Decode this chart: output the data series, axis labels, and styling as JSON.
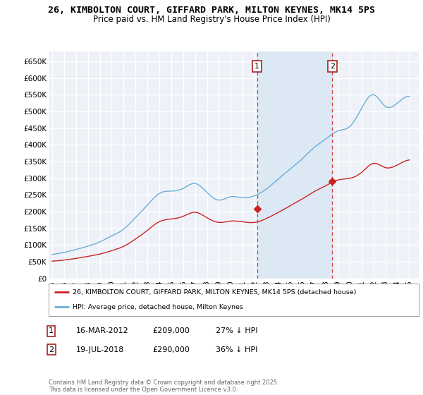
{
  "title": "26, KIMBOLTON COURT, GIFFARD PARK, MILTON KEYNES, MK14 5PS",
  "subtitle": "Price paid vs. HM Land Registry's House Price Index (HPI)",
  "title_fontsize": 9.5,
  "subtitle_fontsize": 8.5,
  "ylim": [
    0,
    680000
  ],
  "yticks": [
    0,
    50000,
    100000,
    150000,
    200000,
    250000,
    300000,
    350000,
    400000,
    450000,
    500000,
    550000,
    600000,
    650000
  ],
  "ytick_labels": [
    "£0",
    "£50K",
    "£100K",
    "£150K",
    "£200K",
    "£250K",
    "£300K",
    "£350K",
    "£400K",
    "£450K",
    "£500K",
    "£550K",
    "£600K",
    "£650K"
  ],
  "hpi_color": "#6dadd6",
  "price_color": "#cc2222",
  "annotation_box_color": "#aa2222",
  "vline_color": "#cc4444",
  "background_color": "#eef2f8",
  "shaded_color": "#dce8f4",
  "grid_color": "#ffffff",
  "footnote": "Contains HM Land Registry data © Crown copyright and database right 2025.\nThis data is licensed under the Open Government Licence v3.0.",
  "legend_label_red": "26, KIMBOLTON COURT, GIFFARD PARK, MILTON KEYNES, MK14 5PS (detached house)",
  "legend_label_blue": "HPI: Average price, detached house, Milton Keynes",
  "annotation1_date": "16-MAR-2012",
  "annotation1_price": "£209,000",
  "annotation1_pct": "27% ↓ HPI",
  "annotation2_date": "19-JUL-2018",
  "annotation2_price": "£290,000",
  "annotation2_pct": "36% ↓ HPI",
  "vline1_x": 2012.21,
  "vline2_x": 2018.54,
  "marker1_x": 2012.21,
  "marker1_y": 209000,
  "marker2_x": 2018.54,
  "marker2_y": 290000,
  "xlim": [
    1994.7,
    2025.8
  ],
  "xtick_years": [
    1995,
    1996,
    1997,
    1998,
    1999,
    2000,
    2001,
    2002,
    2003,
    2004,
    2005,
    2006,
    2007,
    2008,
    2009,
    2010,
    2011,
    2012,
    2013,
    2014,
    2015,
    2016,
    2017,
    2018,
    2019,
    2020,
    2021,
    2022,
    2023,
    2024,
    2025
  ]
}
